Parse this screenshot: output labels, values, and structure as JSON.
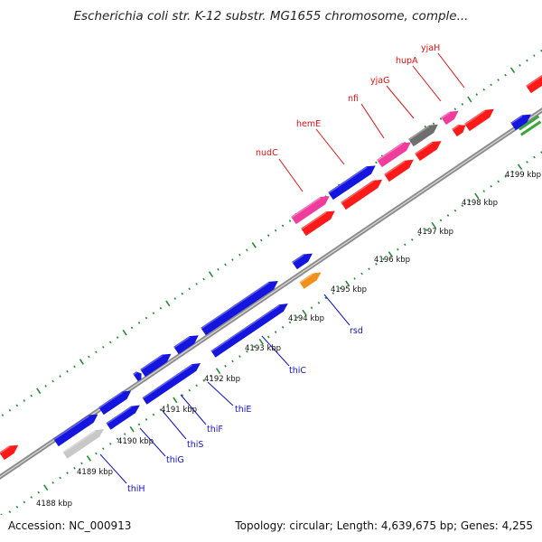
{
  "title": "Escherichia coli str. K-12 substr. MG1655 chromosome, comple...",
  "footer": {
    "accession": "Accession: NC_000913",
    "summary": "Topology: circular; Length: 4,639,675 bp; Genes: 4,255"
  },
  "colors": {
    "backbone": "#8c8c8c",
    "tick_green": "#1f8f2f",
    "red": "#ff1a1a",
    "blue": "#1515e0",
    "pink": "#f03c9c",
    "gray": "#6e6e6e",
    "orange": "#f39018",
    "light_gray": "#c8c8c8",
    "green": "#3aa63a",
    "label_red": "#e01010",
    "label_blue": "#1010d0"
  },
  "ticks": [
    {
      "label": "4188 kbp"
    },
    {
      "label": "4189 kbp"
    },
    {
      "label": "4190 kbp"
    },
    {
      "label": "4191 kbp"
    },
    {
      "label": "4192 kbp"
    },
    {
      "label": "4193 kbp"
    },
    {
      "label": "4194 kbp"
    },
    {
      "label": "4195 kbp"
    },
    {
      "label": "4196 kbp"
    },
    {
      "label": "4197 kbp"
    },
    {
      "label": "4198 kbp"
    },
    {
      "label": "4199 kbp"
    }
  ],
  "gene_labels_top": [
    "nudC",
    "hemE",
    "nfi",
    "yjaG",
    "hupA",
    "yjaH"
  ],
  "gene_labels_bottom": [
    "rsd",
    "thiC",
    "thiE",
    "thiF",
    "thiS",
    "thiG",
    "thiH"
  ]
}
